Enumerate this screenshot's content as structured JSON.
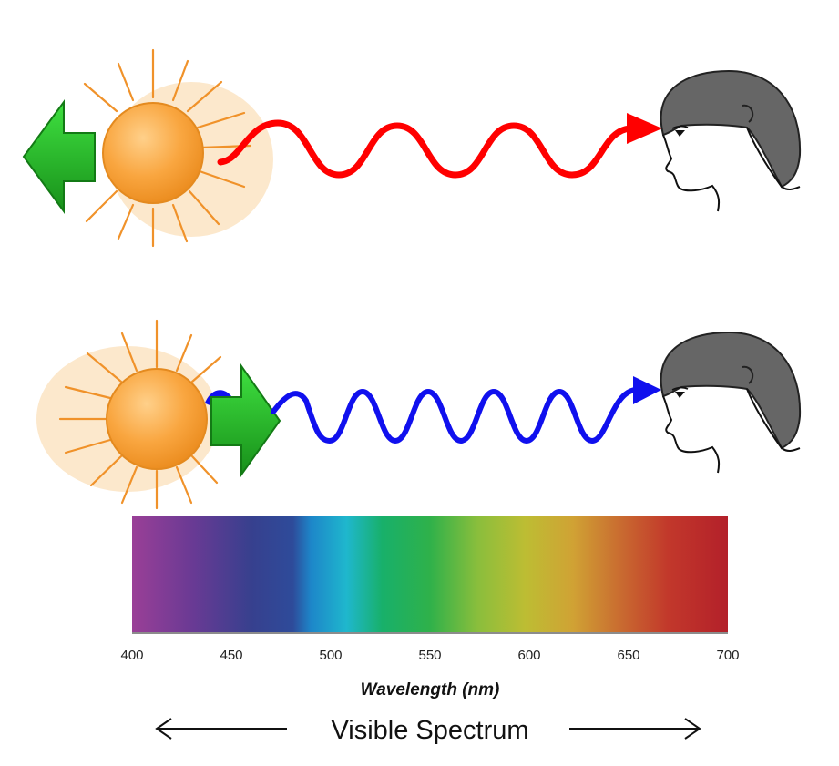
{
  "colors": {
    "redshift_wave": "#ff0000",
    "blueshift_wave": "#1010ee",
    "arrow_green": "#22a022",
    "sun_orange": "#f5a030",
    "head_hair": "#666666"
  },
  "spectrum": {
    "ticks": [
      "400",
      "450",
      "500",
      "550",
      "600",
      "650",
      "700"
    ],
    "axis_label": "Wavelength (nm)",
    "caption": "Visible Spectrum"
  }
}
